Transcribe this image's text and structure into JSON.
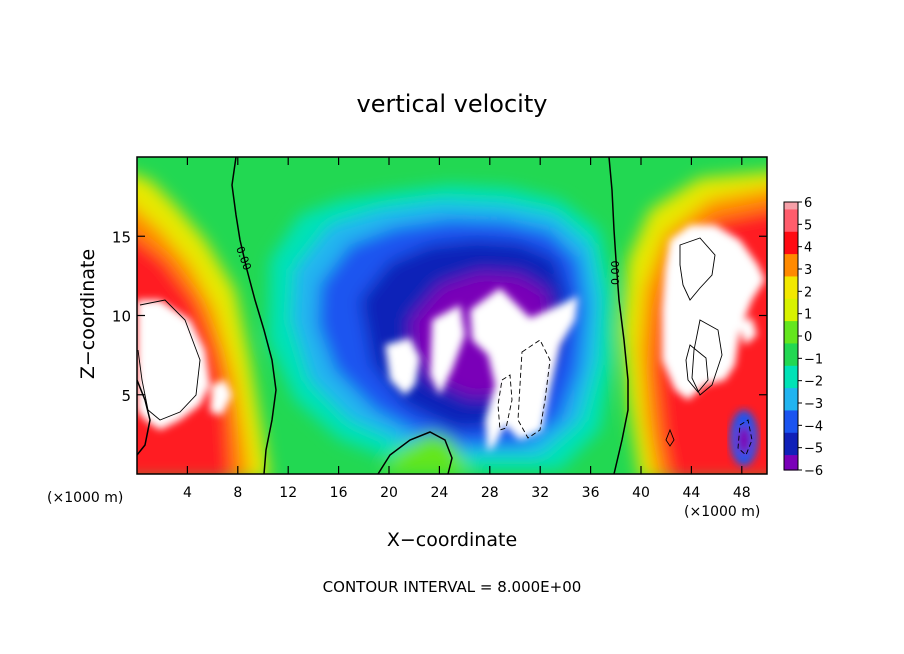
{
  "chart_data": {
    "type": "heatmap",
    "title": "vertical velocity",
    "xlabel": "X−coordinate",
    "ylabel": "Z−coordinate",
    "x_unit_left": "(×1000 m)",
    "x_unit_right": "(×1000 m)",
    "footer": "CONTOUR INTERVAL = 8.000E+00",
    "xlim": [
      0,
      50
    ],
    "ylim": [
      0,
      20
    ],
    "x_ticks": [
      4,
      8,
      12,
      16,
      20,
      24,
      28,
      32,
      36,
      40,
      44,
      48
    ],
    "x_tick_labels": [
      "4",
      "8",
      "12",
      "16",
      "20",
      "24",
      "28",
      "32",
      "36",
      "40",
      "44",
      "48"
    ],
    "y_ticks": [
      5,
      10,
      15
    ],
    "y_tick_labels": [
      "5",
      "10",
      "15"
    ],
    "contour_labels": [
      {
        "text": "0.00",
        "x": 7.9,
        "z": 13.5
      },
      {
        "text": "0.00",
        "x": 38.2,
        "z": 13.2
      }
    ],
    "colorbar": {
      "labels": [
        "6",
        "5",
        "4",
        "3",
        "2",
        "1",
        "0",
        "−1",
        "−2",
        "−3",
        "−4",
        "−5",
        "−6"
      ],
      "colors": [
        "#f6a0a8",
        "#ff5d6c",
        "#ff0a12",
        "#ff8a00",
        "#f2e800",
        "#d8f200",
        "#64e61e",
        "#22d852",
        "#00e2b6",
        "#21b4f0",
        "#1a54f0",
        "#1020b8",
        "#7a00b8"
      ]
    },
    "field_description_values": {
      "min": -6,
      "max": 6,
      "saturated_colors": {
        "above": "#ffffff",
        "below": "#ffffff"
      }
    }
  }
}
